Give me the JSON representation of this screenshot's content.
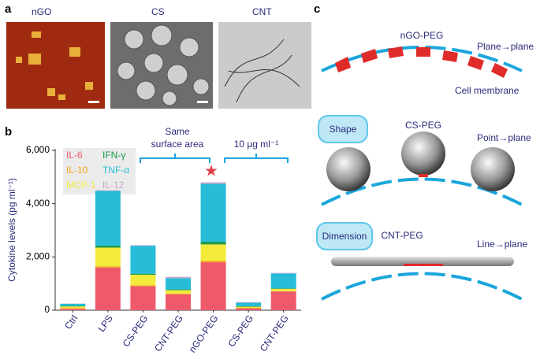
{
  "panel_letters": [
    "a",
    "b",
    "c"
  ],
  "panel_a": {
    "labels": [
      "nGO",
      "CS",
      "CNT"
    ]
  },
  "chart_data": {
    "type": "stacked-bar",
    "y_label": "Cytokine levels (pg ml⁻¹)",
    "categories": [
      "Ctrl",
      "LPS",
      "CS-PEG",
      "CNT-PEG",
      "nGO-PEG",
      "CS-PEG",
      "CNT-PEG"
    ],
    "series": [
      {
        "name": "IL-6",
        "color": "#ef5a6b",
        "values": [
          50,
          1600,
          900,
          600,
          1800,
          70,
          700
        ]
      },
      {
        "name": "IL-10",
        "color": "#f6a21c",
        "values": [
          30,
          50,
          30,
          20,
          50,
          20,
          20
        ]
      },
      {
        "name": "MCP-1",
        "color": "#f3ea3b",
        "values": [
          60,
          700,
          400,
          130,
          620,
          40,
          80
        ]
      },
      {
        "name": "IFN-γ",
        "color": "#1a9a4c",
        "values": [
          20,
          80,
          40,
          30,
          100,
          20,
          20
        ]
      },
      {
        "name": "TNF-α",
        "color": "#27bcd8",
        "values": [
          80,
          2050,
          1050,
          420,
          2180,
          130,
          560
        ]
      },
      {
        "name": "IL-12",
        "color": "#c7a3cc",
        "values": [
          10,
          20,
          20,
          50,
          50,
          20,
          20
        ]
      }
    ],
    "ylim": [
      0,
      6000
    ],
    "yticks": [
      0,
      {
        "value": 2000,
        "label": "2,000"
      },
      {
        "value": 4000,
        "label": "4,000"
      },
      {
        "value": 6000,
        "label": "6,000"
      }
    ],
    "annotations": [
      "Same",
      "surface area",
      "10 μg ml⁻¹"
    ]
  },
  "panel_c": {
    "rows": [
      {
        "title": "nGO-PEG",
        "mode": "Plane→plane",
        "membrane": "Cell membrane"
      },
      {
        "button": "Shape",
        "title": "CS-PEG",
        "mode": "Point→plane"
      },
      {
        "button": "Dimension",
        "title": "CNT-PEG",
        "mode": "Line→plane"
      }
    ]
  }
}
